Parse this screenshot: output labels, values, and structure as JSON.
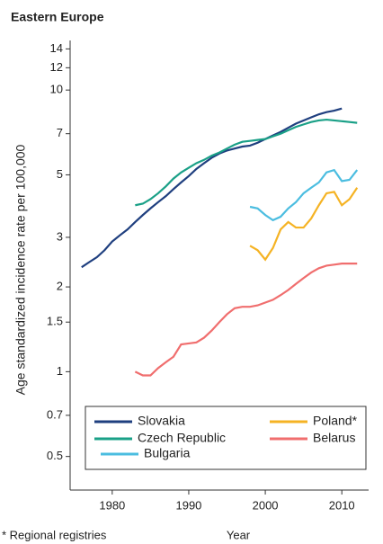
{
  "chart_data": {
    "type": "line",
    "title": "Eastern Europe",
    "ylabel": "Age standardized incidence rate per 100,000",
    "xlabel": "Year",
    "annotation": "* Regional registries",
    "x": [
      1976,
      1977,
      1978,
      1979,
      1980,
      1981,
      1982,
      1983,
      1984,
      1985,
      1986,
      1987,
      1988,
      1989,
      1990,
      1991,
      1992,
      1993,
      1994,
      1995,
      1996,
      1997,
      1998,
      1999,
      2000,
      2001,
      2002,
      2003,
      2004,
      2005,
      2006,
      2007,
      2008,
      2009,
      2010,
      2011,
      2012
    ],
    "xlim": [
      1974.5,
      2013.5
    ],
    "xticks": [
      1980,
      1990,
      2000,
      2010
    ],
    "ylim": [
      0.38,
      15
    ],
    "yticks": [
      0.5,
      0.7,
      1,
      1.5,
      2,
      3,
      5,
      7,
      10,
      12,
      14
    ],
    "log_y": true,
    "grid": false,
    "legend": "bottom",
    "series": [
      {
        "name": "Slovakia",
        "color": "#1f3f7f",
        "values": [
          2.35,
          2.45,
          2.55,
          2.7,
          2.9,
          3.05,
          3.2,
          3.4,
          3.6,
          3.8,
          4.0,
          4.2,
          4.45,
          4.7,
          4.95,
          5.25,
          5.5,
          5.75,
          5.95,
          6.1,
          6.2,
          6.3,
          6.35,
          6.5,
          6.7,
          6.9,
          7.1,
          7.35,
          7.6,
          7.8,
          8.0,
          8.2,
          8.35,
          8.45,
          8.6,
          null,
          null
        ]
      },
      {
        "name": "Czech Republic",
        "color": "#1aa087",
        "values": [
          null,
          null,
          null,
          null,
          null,
          null,
          null,
          3.9,
          3.95,
          4.1,
          4.3,
          4.55,
          4.85,
          5.1,
          5.3,
          5.5,
          5.65,
          5.85,
          6.0,
          6.2,
          6.4,
          6.55,
          6.6,
          6.65,
          6.7,
          6.85,
          7.0,
          7.2,
          7.4,
          7.55,
          7.7,
          7.8,
          7.85,
          7.8,
          7.75,
          7.7,
          7.65
        ]
      },
      {
        "name": "Bulgaria",
        "color": "#4bbde0",
        "values": [
          null,
          null,
          null,
          null,
          null,
          null,
          null,
          null,
          null,
          null,
          null,
          null,
          null,
          null,
          null,
          null,
          null,
          null,
          null,
          null,
          null,
          null,
          3.85,
          3.8,
          3.6,
          3.45,
          3.55,
          3.8,
          4.0,
          4.3,
          4.5,
          4.7,
          5.1,
          5.2,
          4.75,
          4.8,
          5.2
        ]
      },
      {
        "name": "Poland*",
        "color": "#f5b324",
        "values": [
          null,
          null,
          null,
          null,
          null,
          null,
          null,
          null,
          null,
          null,
          null,
          null,
          null,
          null,
          null,
          null,
          null,
          null,
          null,
          null,
          null,
          null,
          2.8,
          2.7,
          2.5,
          2.75,
          3.2,
          3.4,
          3.25,
          3.25,
          3.5,
          3.9,
          4.3,
          4.35,
          3.9,
          4.1,
          4.5
        ]
      },
      {
        "name": "Belarus",
        "color": "#f06e6e",
        "values": [
          null,
          null,
          null,
          null,
          null,
          null,
          null,
          1.0,
          0.97,
          0.97,
          1.03,
          1.08,
          1.13,
          1.25,
          1.26,
          1.27,
          1.32,
          1.4,
          1.5,
          1.6,
          1.68,
          1.7,
          1.7,
          1.72,
          1.76,
          1.8,
          1.87,
          1.95,
          2.05,
          2.15,
          2.25,
          2.33,
          2.38,
          2.4,
          2.42,
          2.42,
          2.42
        ]
      }
    ]
  }
}
